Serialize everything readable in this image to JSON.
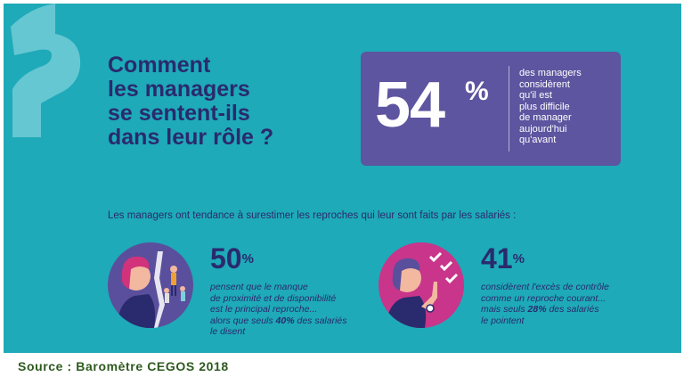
{
  "headline": {
    "lines": [
      "Comment",
      "les managers",
      "se sentent-ils",
      "dans leur rôle ?"
    ]
  },
  "highlight": {
    "number": "54",
    "percent": "%",
    "lines": [
      "des managers",
      "considèrent",
      "qu'il est",
      "plus difficile",
      "de manager",
      "aujourd'hui",
      "qu'avant"
    ]
  },
  "subtitle": "Les managers ont tendance à surestimer les reproches qui leur sont faits par les salariés :",
  "stats": [
    {
      "number": "50",
      "percent": "%",
      "line1": "pensent que le manque",
      "line2": "de proximité et de disponibilité",
      "line3": "est le principal reproche...",
      "line4_pre": "alors que seuls ",
      "line4_bold": "40%",
      "line4_post": " des salariés",
      "line5": "le disent"
    },
    {
      "number": "41",
      "percent": "%",
      "line1": "considèrent l'excès de contrôle",
      "line2": "comme un reproche courant...",
      "line3_pre": "mais seuls ",
      "line3_bold": "28%",
      "line3_post": " des salariés",
      "line4": "le pointent"
    }
  ],
  "source": "Source : Baromètre CEGOS 2018",
  "colors": {
    "panel": "#1eaab8",
    "navy": "#2a2a6e",
    "box": "#5d559f",
    "source_green": "#2d5a1e"
  }
}
